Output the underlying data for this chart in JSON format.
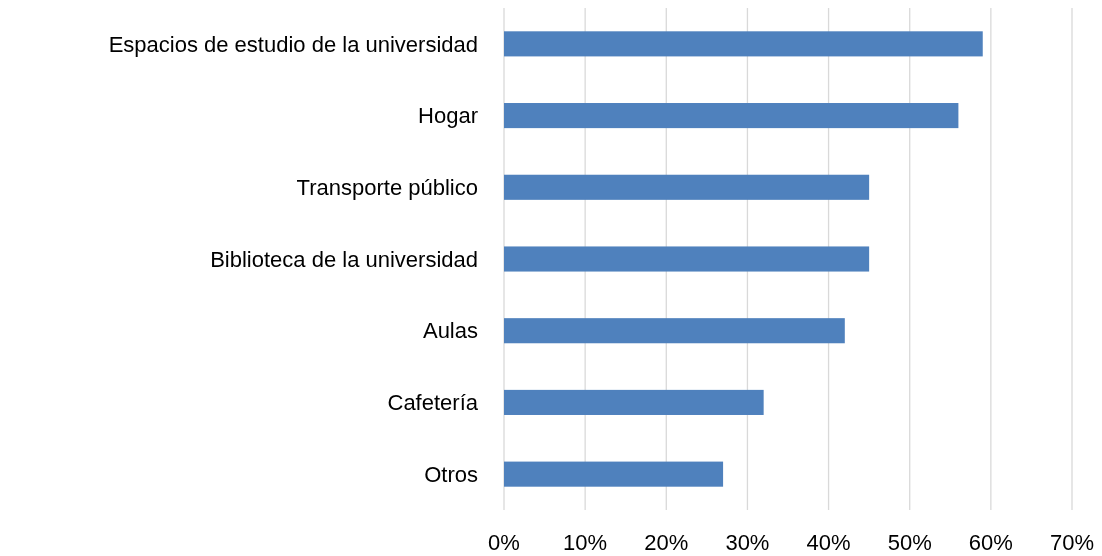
{
  "chart_data": {
    "type": "bar",
    "orientation": "horizontal",
    "categories": [
      "Espacios de estudio de la universidad",
      "Hogar",
      "Transporte público",
      "Biblioteca de la universidad",
      "Aulas",
      "Cafetería",
      "Otros"
    ],
    "values": [
      59,
      56,
      45,
      45,
      42,
      32,
      27
    ],
    "color": "#4f81bd",
    "xlim": [
      0,
      70
    ],
    "xticks": [
      {
        "value": 0,
        "label": "0%"
      },
      {
        "value": 10,
        "label": "10%"
      },
      {
        "value": 20,
        "label": "20%"
      },
      {
        "value": 30,
        "label": "30%"
      },
      {
        "value": 40,
        "label": "40%"
      },
      {
        "value": 50,
        "label": "50%"
      },
      {
        "value": 60,
        "label": "60%"
      },
      {
        "value": 70,
        "label": "70%"
      }
    ],
    "grid": "x"
  }
}
